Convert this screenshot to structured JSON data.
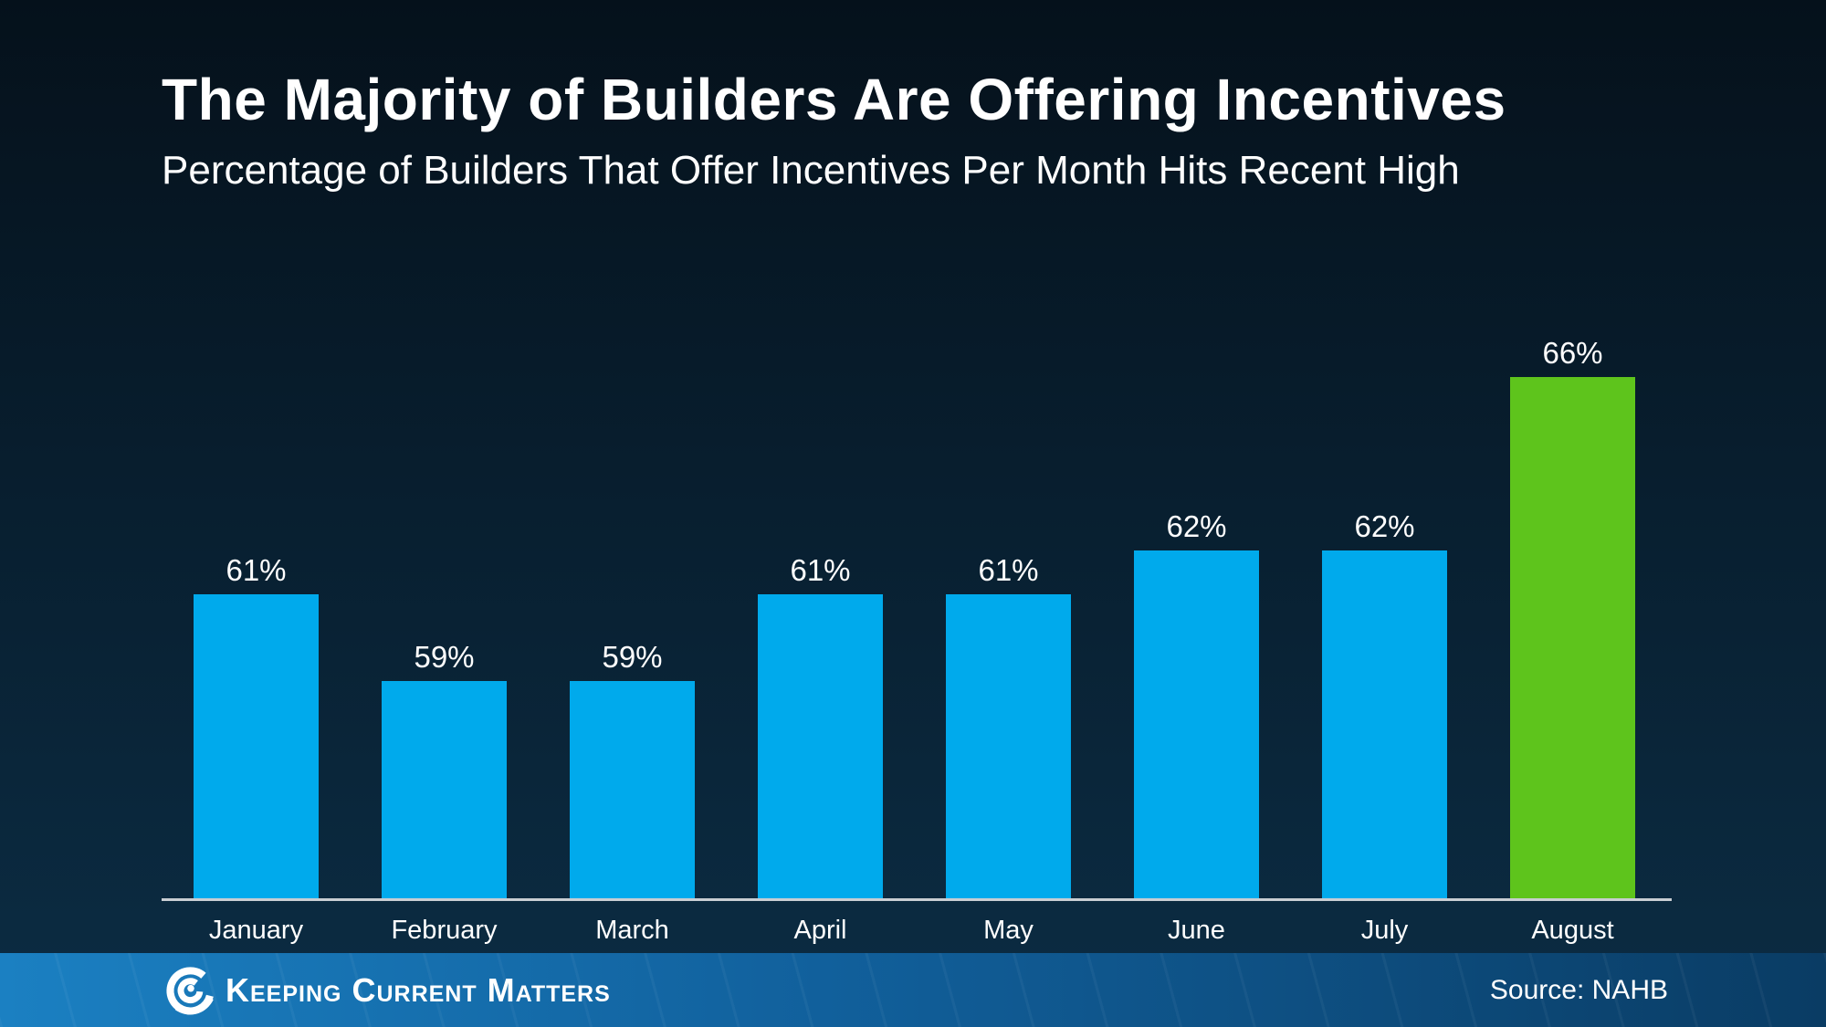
{
  "header": {
    "title": "The Majority of Builders Are Offering Incentives",
    "subtitle": "Percentage of Builders That Offer Incentives Per Month Hits Recent High"
  },
  "chart_data": {
    "type": "bar",
    "title": "The Majority of Builders Are Offering Incentives",
    "subtitle": "Percentage of Builders That Offer Incentives Per Month Hits Recent High",
    "categories": [
      "January",
      "February",
      "March",
      "April",
      "May",
      "June",
      "July",
      "August"
    ],
    "values": [
      61,
      59,
      59,
      61,
      61,
      62,
      62,
      66
    ],
    "unit": "%",
    "value_labels": [
      "61%",
      "59%",
      "59%",
      "61%",
      "61%",
      "62%",
      "62%",
      "66%"
    ],
    "highlight_index": 7,
    "bar_color": "#00aaec",
    "highlight_color": "#5ec41c",
    "xlabel": "",
    "ylabel": "",
    "ylim": [
      54,
      67
    ],
    "grid": false,
    "legend": false,
    "value_labels_position": "above-bars",
    "note": "August bar highlighted in green as recent high"
  },
  "footer": {
    "brand": "Keeping Current Matters",
    "logo": "kcm-swirl-logo",
    "source": "Source: NAHB"
  },
  "colors": {
    "background_top": "#05111b",
    "background_bottom": "#0b2a40",
    "bar_blue": "#00aaec",
    "bar_green": "#5ec41c",
    "axis_line": "#c9ced3",
    "footer_left": "#1b80c2",
    "footer_right": "#0a3c64",
    "text": "#ffffff"
  }
}
